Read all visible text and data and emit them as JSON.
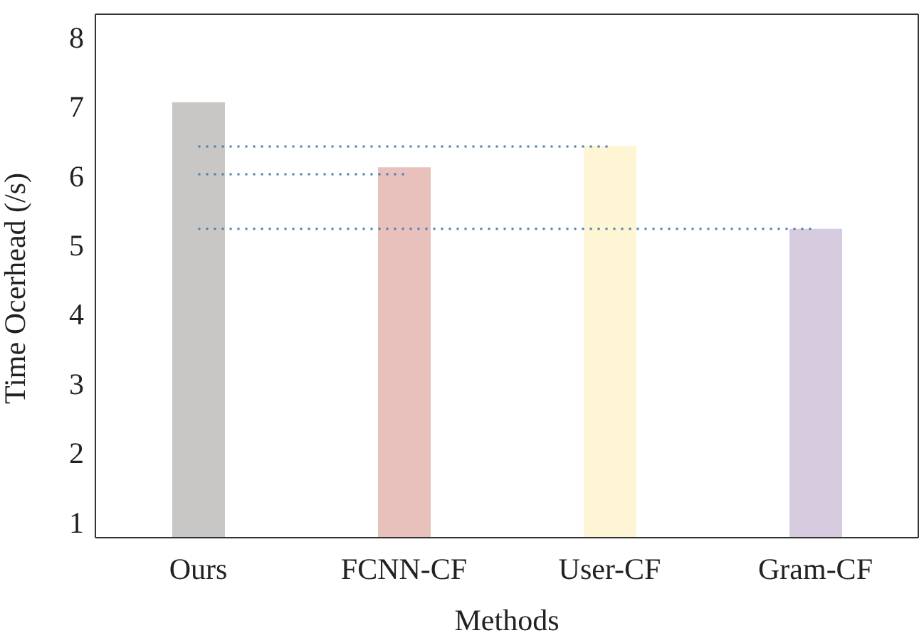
{
  "chart_data": {
    "type": "bar",
    "xlabel": "Methods",
    "ylabel": "Time Ocerhead (/s)",
    "categories": [
      "Ours",
      "FCNN-CF",
      "User-CF",
      "Gram-CF"
    ],
    "values": [
      7.06,
      6.12,
      6.43,
      5.23
    ],
    "colors": [
      "#c8c7c5",
      "#e8c0bc",
      "#fdf5d3",
      "#d7cbe0"
    ],
    "ylim": [
      0.77,
      8.33
    ],
    "yticks": [
      1,
      2,
      3,
      4,
      5,
      6,
      7,
      8
    ],
    "grid": false,
    "legend": false,
    "ref_lines": [
      {
        "axis": "y",
        "value": 6.42,
        "color": "#4a7fb0",
        "line_style": "dotted"
      },
      {
        "axis": "y",
        "value": 6.02,
        "color": "#4a7fb0",
        "line_style": "dotted"
      },
      {
        "axis": "y",
        "value": 5.23,
        "color": "#4a7fb0",
        "line_style": "dotted"
      }
    ]
  }
}
